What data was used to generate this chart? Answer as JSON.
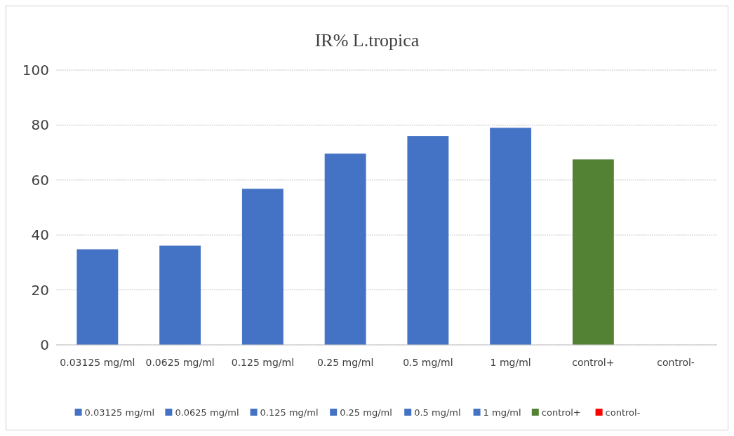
{
  "chart_data": {
    "type": "bar",
    "title": "IR% L.tropica",
    "stacked": true,
    "categories": [
      "0.03125 mg/ml",
      "0.0625 mg/ml",
      "0.125 mg/ml",
      "0.25 mg/ml",
      "0.5 mg/ml",
      "1 mg/ml",
      "control+",
      "control-"
    ],
    "series": [
      {
        "name": "0.03125 mg/ml",
        "color": "#4472c4",
        "values": [
          34.8,
          null,
          null,
          null,
          null,
          null,
          null,
          null
        ]
      },
      {
        "name": "0.0625 mg/ml",
        "color": "#4472c4",
        "values": [
          null,
          36.1,
          null,
          null,
          null,
          null,
          null,
          null
        ]
      },
      {
        "name": "0.125 mg/ml",
        "color": "#4472c4",
        "values": [
          null,
          null,
          56.8,
          null,
          null,
          null,
          null,
          null
        ]
      },
      {
        "name": "0.25 mg/ml",
        "color": "#4472c4",
        "values": [
          null,
          null,
          null,
          69.6,
          null,
          null,
          null,
          null
        ]
      },
      {
        "name": "0.5 mg/ml",
        "color": "#4472c4",
        "values": [
          null,
          null,
          null,
          null,
          76,
          null,
          null,
          null
        ]
      },
      {
        "name": "1 mg/ml",
        "color": "#4472c4",
        "values": [
          null,
          null,
          null,
          null,
          null,
          79,
          null,
          null
        ]
      },
      {
        "name": "control+",
        "color": "#548235",
        "values": [
          null,
          null,
          null,
          null,
          null,
          null,
          67.5,
          null
        ]
      },
      {
        "name": "control-",
        "color": "#ff0000",
        "values": [
          null,
          null,
          null,
          null,
          null,
          null,
          null,
          0
        ]
      }
    ],
    "ylim": [
      0,
      100
    ],
    "yticks": [
      0,
      20,
      40,
      60,
      80,
      100
    ],
    "grid": "y",
    "legend": "bottom"
  }
}
